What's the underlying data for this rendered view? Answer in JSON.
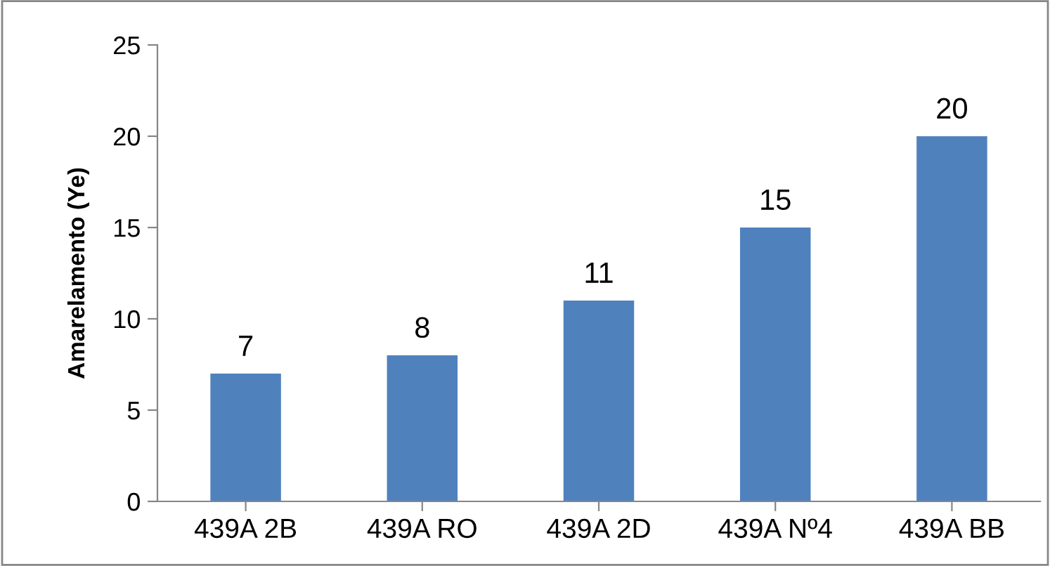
{
  "chart_data": {
    "type": "bar",
    "ylabel": "Amarelamento (Ye)",
    "categories": [
      "439A 2B",
      "439A RO",
      "439A 2D",
      "439A Nº4",
      "439A BB"
    ],
    "values": [
      7,
      8,
      11,
      15,
      20
    ],
    "color": "#4f81bd",
    "ylim": [
      0,
      25
    ],
    "yticks": [
      0,
      5,
      10,
      15,
      20,
      25
    ],
    "data_labels": true,
    "grid": false
  }
}
